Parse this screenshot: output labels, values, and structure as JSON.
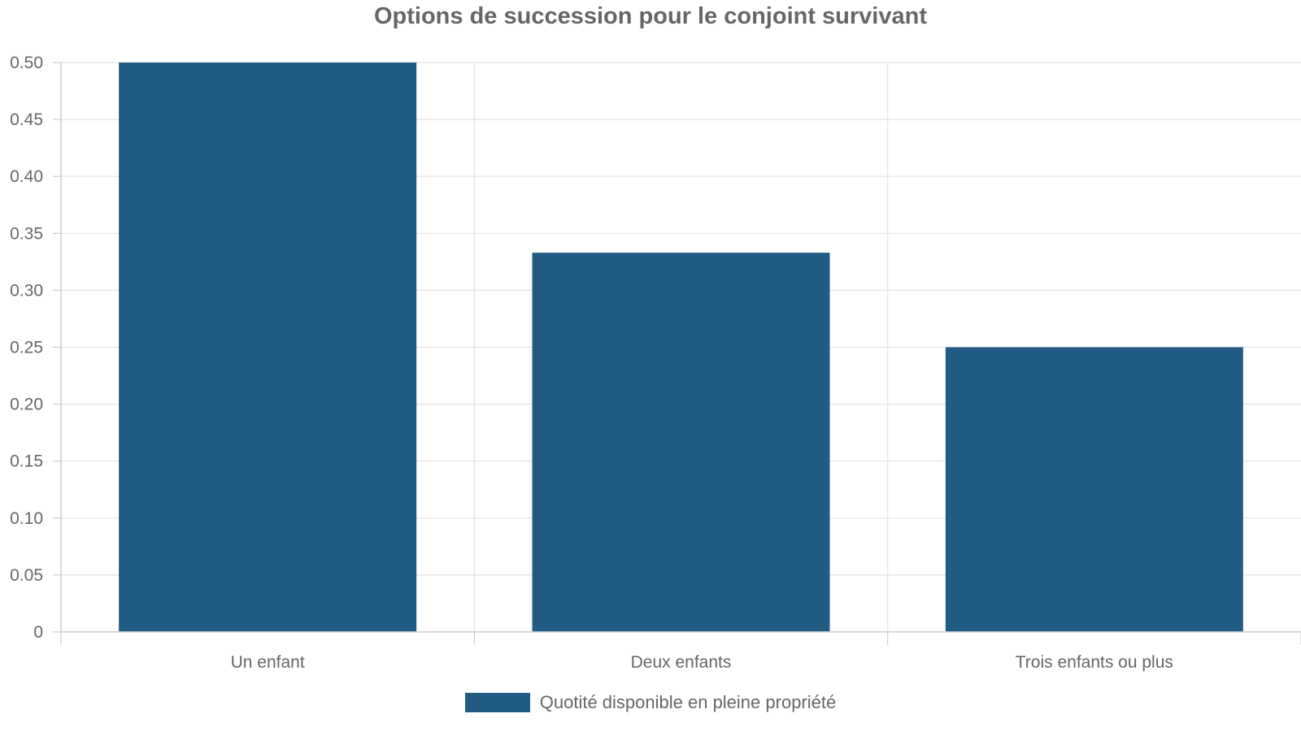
{
  "chart_data": {
    "type": "bar",
    "title": "Options de succession pour le conjoint survivant",
    "xlabel": "",
    "ylabel": "",
    "categories": [
      "Un enfant",
      "Deux enfants",
      "Trois enfants ou plus"
    ],
    "series": [
      {
        "name": "Quotité disponible en pleine propriété",
        "values": [
          0.5,
          0.333,
          0.25
        ],
        "color": "#215c85"
      }
    ],
    "ylim": [
      0,
      0.5
    ],
    "yticks": [
      "0",
      "0.05",
      "0.10",
      "0.15",
      "0.20",
      "0.25",
      "0.30",
      "0.35",
      "0.40",
      "0.45",
      "0.50"
    ],
    "grid": true,
    "legend_position": "bottom-center"
  }
}
